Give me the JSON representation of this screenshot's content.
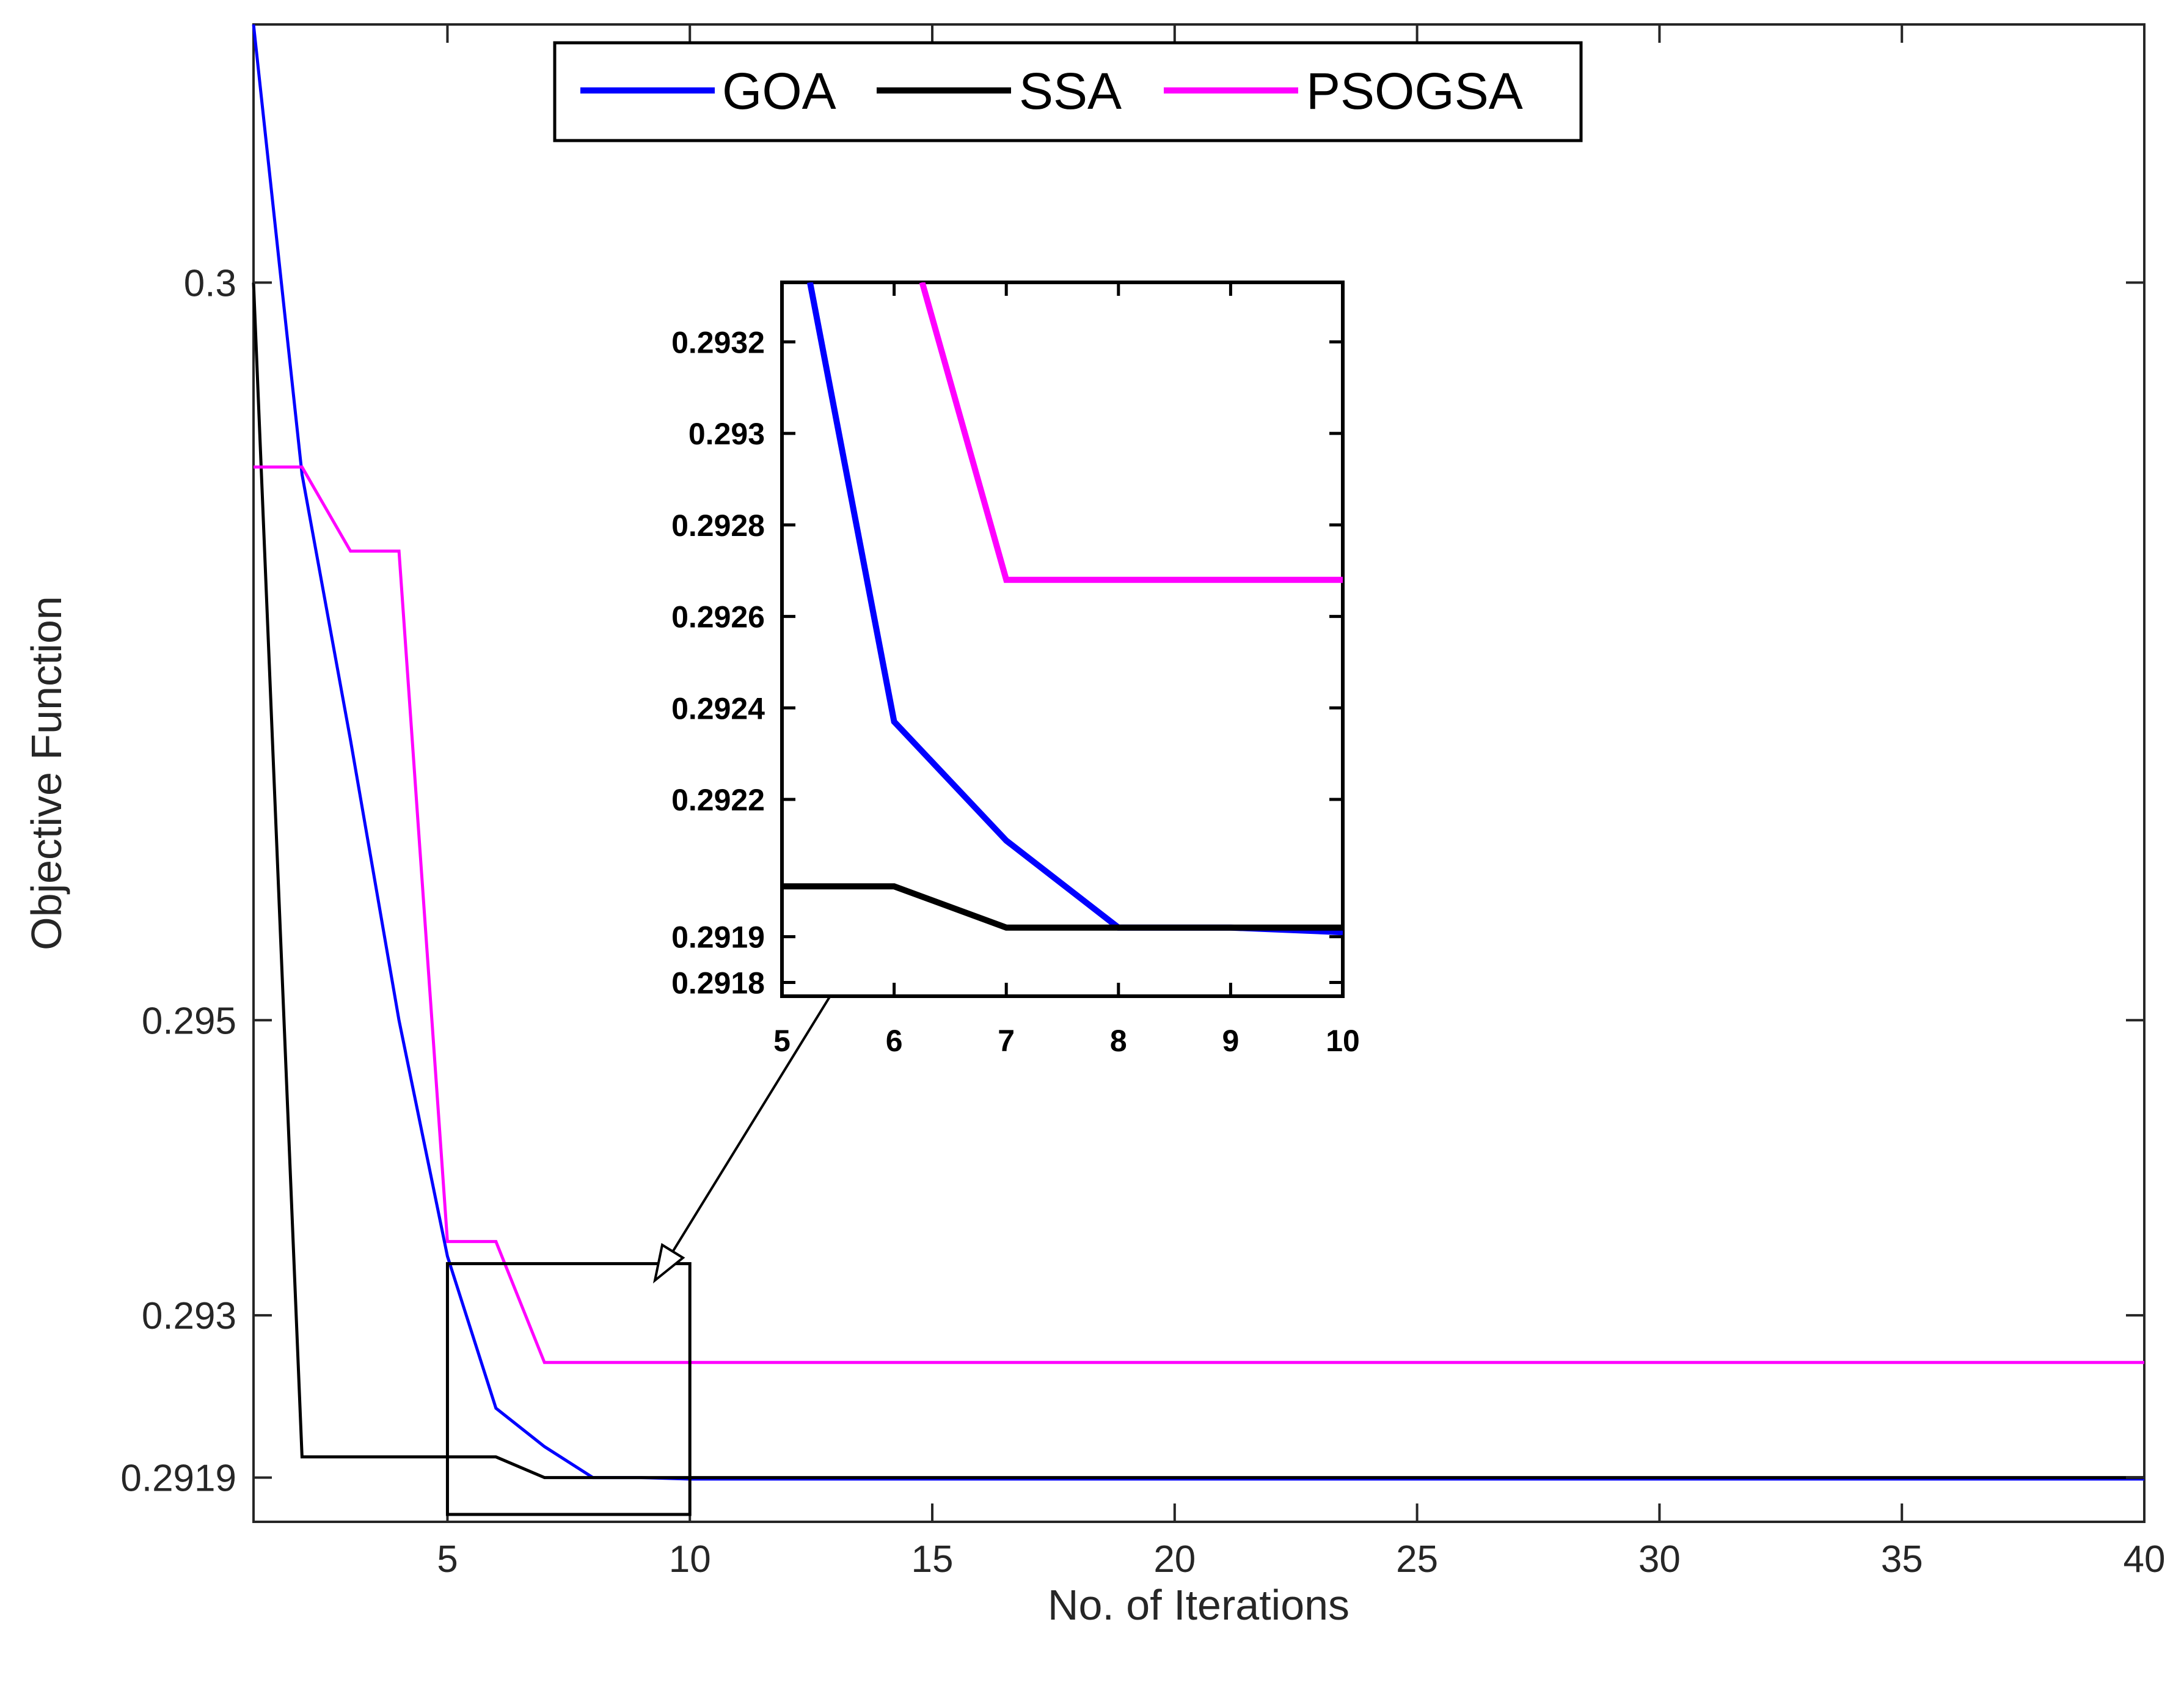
{
  "chart_data": [
    {
      "id": "main",
      "type": "line",
      "title": "",
      "xlabel": "No. of Iterations",
      "ylabel": "Objective Function",
      "xlim": [
        1,
        40
      ],
      "ylim": [
        0.2916,
        0.30175
      ],
      "xticks": [
        5,
        10,
        15,
        20,
        25,
        30,
        35,
        40
      ],
      "xtick_labels": [
        "5",
        "10",
        "15",
        "20",
        "25",
        "30",
        "35",
        "40"
      ],
      "yticks": [
        0.2919,
        0.293,
        0.295,
        0.3
      ],
      "ytick_labels": [
        "0.2919",
        "0.293",
        "0.295",
        "0.3"
      ],
      "grid": false,
      "legend_position": "top",
      "legend": [
        "GOA",
        "SSA",
        "PSOGSA"
      ],
      "series": [
        {
          "name": "GOA",
          "color": "#0000FF",
          "x": [
            1,
            2,
            3,
            4,
            5,
            6,
            7,
            8,
            9,
            10,
            40
          ],
          "y": [
            0.30175,
            0.2987,
            0.2969,
            0.295,
            0.2934,
            0.29237,
            0.29211,
            0.2919,
            0.2919,
            0.29189,
            0.29189
          ]
        },
        {
          "name": "SSA",
          "color": "#000000",
          "x": [
            1,
            2,
            5,
            6,
            7,
            10,
            40
          ],
          "y": [
            0.3,
            0.29204,
            0.29204,
            0.29204,
            0.2919,
            0.2919,
            0.2919
          ]
        },
        {
          "name": "PSOGSA",
          "color": "#FF00FF",
          "x": [
            1,
            2,
            3,
            4,
            5,
            6,
            7,
            10,
            40
          ],
          "y": [
            0.29875,
            0.29875,
            0.29818,
            0.29818,
            0.2935,
            0.2935,
            0.29268,
            0.29268,
            0.29268
          ]
        }
      ],
      "zoom_box": {
        "x_range": [
          5,
          10
        ],
        "y_range": [
          0.29165,
          0.29335
        ]
      }
    },
    {
      "id": "inset",
      "type": "line",
      "title": "",
      "xlim": [
        5,
        10
      ],
      "ylim": [
        0.29177,
        0.29333
      ],
      "xticks": [
        5,
        6,
        7,
        8,
        9,
        10
      ],
      "xtick_labels": [
        "5",
        "6",
        "7",
        "8",
        "9",
        "10"
      ],
      "yticks": [
        0.2918,
        0.2919,
        0.2922,
        0.2924,
        0.2926,
        0.2928,
        0.293,
        0.2932
      ],
      "ytick_labels": [
        "0.2918",
        "0.2919",
        "0.2922",
        "0.2924",
        "0.2926",
        "0.2928",
        "0.293",
        "0.2932"
      ],
      "grid": false,
      "series": [
        {
          "name": "GOA",
          "color": "#0000FF",
          "x": [
            5.25,
            6,
            7,
            8,
            9,
            10
          ],
          "y": [
            0.29333,
            0.29237,
            0.29211,
            0.29192,
            0.29192,
            0.29191
          ]
        },
        {
          "name": "SSA",
          "color": "#000000",
          "x": [
            5,
            6,
            7,
            8,
            9,
            10
          ],
          "y": [
            0.29201,
            0.29201,
            0.29192,
            0.29192,
            0.29192,
            0.29192
          ]
        },
        {
          "name": "PSOGSA",
          "color": "#FF00FF",
          "x": [
            6.25,
            7,
            8,
            9,
            10
          ],
          "y": [
            0.29333,
            0.29268,
            0.29268,
            0.29268,
            0.29268
          ]
        }
      ]
    }
  ]
}
